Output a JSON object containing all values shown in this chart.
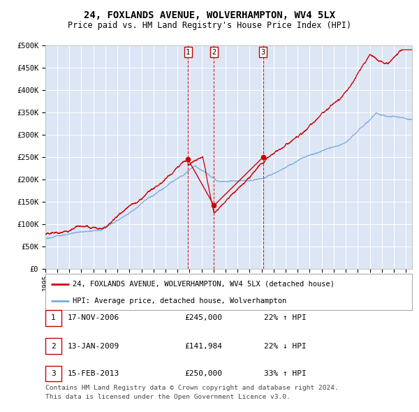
{
  "title": "24, FOXLANDS AVENUE, WOLVERHAMPTON, WV4 5LX",
  "subtitle": "Price paid vs. HM Land Registry's House Price Index (HPI)",
  "legend_red": "24, FOXLANDS AVENUE, WOLVERHAMPTON, WV4 5LX (detached house)",
  "legend_blue": "HPI: Average price, detached house, Wolverhampton",
  "table": [
    {
      "num": 1,
      "date": "17-NOV-2006",
      "price": "£245,000",
      "change": "22% ↑ HPI"
    },
    {
      "num": 2,
      "date": "13-JAN-2009",
      "price": "£141,984",
      "change": "22% ↓ HPI"
    },
    {
      "num": 3,
      "date": "15-FEB-2013",
      "price": "£250,000",
      "change": "33% ↑ HPI"
    }
  ],
  "footer": "Contains HM Land Registry data © Crown copyright and database right 2024.\nThis data is licensed under the Open Government Licence v3.0.",
  "sale_dates_decimal": [
    2006.879,
    2009.036,
    2013.121
  ],
  "sale_prices": [
    245000,
    141984,
    250000
  ],
  "vline_labels": [
    "1",
    "2",
    "3"
  ],
  "red_color": "#cc0000",
  "blue_color": "#7aaadd",
  "bg_color": "#dce6f5",
  "grid_color": "#ffffff",
  "ylim": [
    0,
    500000
  ],
  "yticks": [
    0,
    50000,
    100000,
    150000,
    200000,
    250000,
    300000,
    350000,
    400000,
    450000,
    500000
  ],
  "xlim_start": 1995.0,
  "xlim_end": 2025.5
}
